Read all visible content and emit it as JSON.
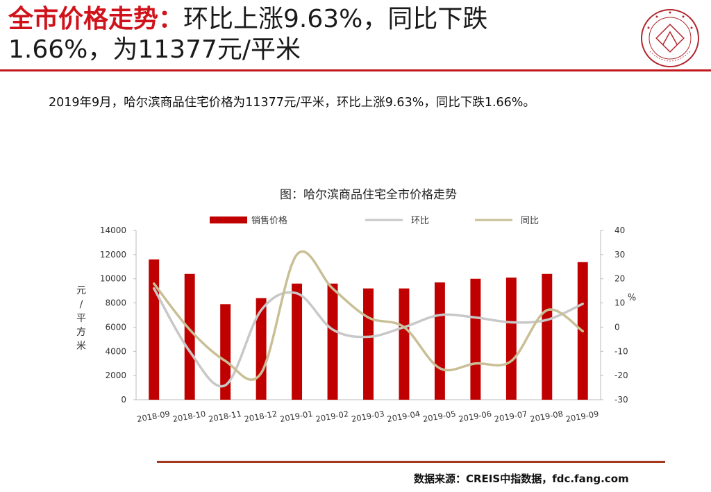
{
  "header": {
    "title_highlight": "全市价格走势：",
    "title_line1_rest": "环比上涨9.63%，同比下跌",
    "title_line2": "1.66%，为11377元/平米",
    "logo_icon": "china-index-academy-seal-icon",
    "accent_color": "#d0121b"
  },
  "summary_text": "2019年9月，哈尔滨商品住宅价格为11377元/平米，环比上涨9.63%，同比下跌1.66%。",
  "chart_data": {
    "type": "bar",
    "title": "图：哈尔滨商品住宅全市价格走势",
    "categories": [
      "2018-09",
      "2018-10",
      "2018-11",
      "2018-12",
      "2019-01",
      "2019-02",
      "2019-03",
      "2019-04",
      "2019-05",
      "2019-06",
      "2019-07",
      "2019-08",
      "2019-09"
    ],
    "series": [
      {
        "name": "销售价格",
        "type": "bar",
        "axis": "left",
        "color": "#c00000",
        "values": [
          11600,
          10400,
          7900,
          8400,
          9600,
          9600,
          9200,
          9200,
          9700,
          10000,
          10100,
          10400,
          11377
        ]
      },
      {
        "name": "环比",
        "type": "line",
        "axis": "right",
        "color": "#c8c8c8",
        "values": [
          16,
          -10,
          -24,
          7,
          14,
          -1,
          -4,
          0,
          5,
          4,
          2,
          3,
          9.63
        ]
      },
      {
        "name": "同比",
        "type": "line",
        "axis": "right",
        "color": "#c9bf96",
        "values": [
          18,
          -1,
          -14,
          -19,
          30,
          16,
          4,
          0,
          -17,
          -15,
          -14,
          7,
          -1.66
        ]
      }
    ],
    "ylabel_left": "元/平方米",
    "ylabel_right": "%",
    "ylim_left": [
      0,
      14000
    ],
    "ylim_right": [
      -30,
      40
    ],
    "yticks_left": [
      "0",
      "2000",
      "4000",
      "6000",
      "8000",
      "10000",
      "12000",
      "14000"
    ],
    "yticks_right": [
      "-30",
      "-20",
      "-10",
      "0",
      "10",
      "20",
      "30",
      "40"
    ],
    "grid": false,
    "legend_position": "top"
  },
  "footer": {
    "source": "数据来源：CREIS中指数据，fdc.fang.com"
  }
}
